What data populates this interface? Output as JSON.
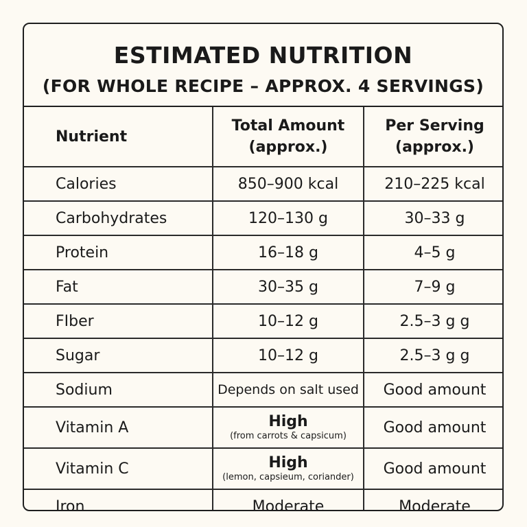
{
  "header": {
    "title": "ESTIMATED NUTRITION",
    "subtitle": "(FOR WHOLE RECIPE – APPROX. 4 SERVINGS)"
  },
  "table": {
    "columns": {
      "nutrient": "Nutrient",
      "total_line1": "Total Amount",
      "total_line2": "(approx.)",
      "per_line1": "Per Serving",
      "per_line2": "(approx.)"
    },
    "rows": [
      {
        "nutrient": "Calories",
        "total": "850–900 kcal",
        "per_serving": "210–225 kcal"
      },
      {
        "nutrient": "Carbohydrates",
        "total": "120–130 g",
        "per_serving": "30–33 g"
      },
      {
        "nutrient": "Protein",
        "total": "16–18 g",
        "per_serving": "4–5 g"
      },
      {
        "nutrient": "Fat",
        "total": "30–35 g",
        "per_serving": "7–9 g"
      },
      {
        "nutrient": "FIber",
        "total": "10–12 g",
        "per_serving": "2.5–3 g g"
      },
      {
        "nutrient": "Sugar",
        "total": "10–12 g",
        "per_serving": "2.5–3 g g"
      },
      {
        "nutrient": "Sodium",
        "total": "Depends on salt used",
        "per_serving": "Good amount"
      },
      {
        "nutrient": "Vitamin A",
        "total": "High",
        "total_note": "(from carrots & capsicum)",
        "per_serving": "Good amount"
      },
      {
        "nutrient": "Vitamin C",
        "total": "High",
        "total_note": "(lemon, capsieum, coriander)",
        "per_serving": "Good amount"
      },
      {
        "nutrient": "Iron",
        "total": "Moderate",
        "per_serving": "Moderate"
      }
    ]
  }
}
